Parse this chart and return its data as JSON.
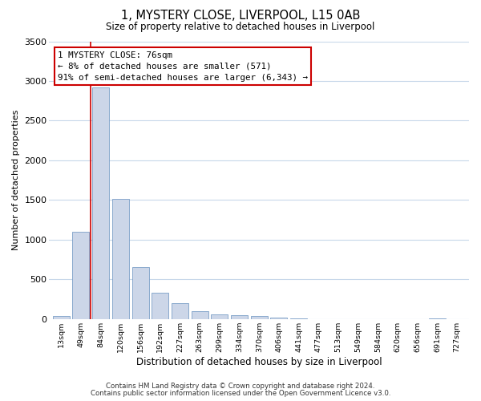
{
  "title": "1, MYSTERY CLOSE, LIVERPOOL, L15 0AB",
  "subtitle": "Size of property relative to detached houses in Liverpool",
  "xlabel": "Distribution of detached houses by size in Liverpool",
  "ylabel": "Number of detached properties",
  "bar_labels": [
    "13sqm",
    "49sqm",
    "84sqm",
    "120sqm",
    "156sqm",
    "192sqm",
    "227sqm",
    "263sqm",
    "299sqm",
    "334sqm",
    "370sqm",
    "406sqm",
    "441sqm",
    "477sqm",
    "513sqm",
    "549sqm",
    "584sqm",
    "620sqm",
    "656sqm",
    "691sqm",
    "727sqm"
  ],
  "bar_values": [
    40,
    1100,
    2920,
    1510,
    650,
    330,
    195,
    100,
    55,
    50,
    35,
    15,
    10,
    0,
    0,
    0,
    0,
    0,
    0,
    8,
    0
  ],
  "bar_color": "#ccd6e8",
  "bar_edge_color": "#7b9fc7",
  "red_line_x": 2.0,
  "red_line_color": "#cc0000",
  "annotation_title": "1 MYSTERY CLOSE: 76sqm",
  "annotation_line1": "← 8% of detached houses are smaller (571)",
  "annotation_line2": "91% of semi-detached houses are larger (6,343) →",
  "annotation_box_color": "#ffffff",
  "annotation_box_edge": "#cc0000",
  "ylim": [
    0,
    3500
  ],
  "yticks": [
    0,
    500,
    1000,
    1500,
    2000,
    2500,
    3000,
    3500
  ],
  "footer1": "Contains HM Land Registry data © Crown copyright and database right 2024.",
  "footer2": "Contains public sector information licensed under the Open Government Licence v3.0.",
  "background_color": "#ffffff",
  "grid_color": "#c8d8ea"
}
